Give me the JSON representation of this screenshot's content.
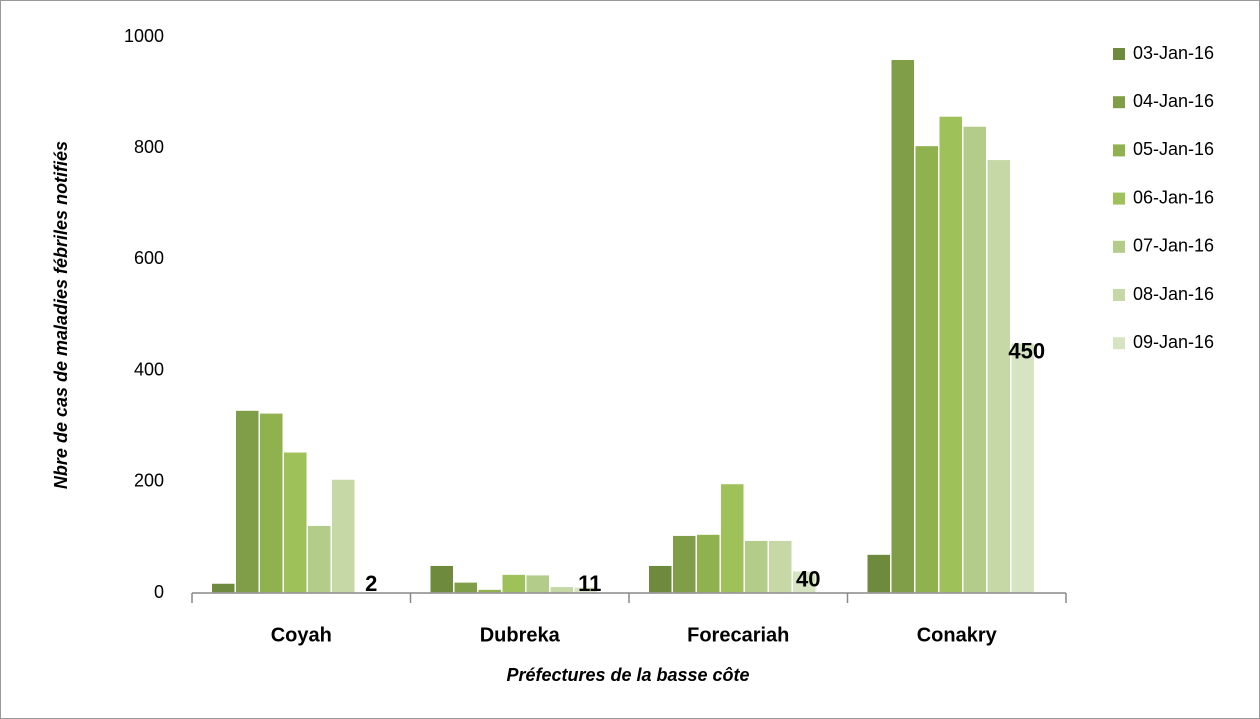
{
  "chart_data": {
    "type": "bar",
    "xlabel": "Préfectures de la basse côte",
    "ylabel": "Nbre de cas de maladies fébriles notifiés",
    "categories": [
      "Coyah",
      "Dubreka",
      "Forecariah",
      "Conakry"
    ],
    "series": [
      {
        "name": "03-Jan-16",
        "color": "#6e8b3d",
        "values": [
          18,
          50,
          50,
          70
        ]
      },
      {
        "name": "04-Jan-16",
        "color": "#7f9e47",
        "values": [
          329,
          20,
          104,
          960
        ]
      },
      {
        "name": "05-Jan-16",
        "color": "#8fb24e",
        "values": [
          324,
          7,
          106,
          805
        ]
      },
      {
        "name": "06-Jan-16",
        "color": "#9fc15a",
        "values": [
          254,
          34,
          197,
          858
        ]
      },
      {
        "name": "07-Jan-16",
        "color": "#b3cc8a",
        "values": [
          122,
          33,
          95,
          840
        ]
      },
      {
        "name": "08-Jan-16",
        "color": "#c5d8a6",
        "values": [
          205,
          12,
          95,
          780
        ]
      },
      {
        "name": "09-Jan-16",
        "color": "#d7e4c2",
        "values": [
          2,
          11,
          40,
          450
        ],
        "data_labels": true
      }
    ],
    "ylim": [
      0,
      1000
    ],
    "yticks": [
      0,
      200,
      400,
      600,
      800,
      1000
    ],
    "grid": false,
    "legend": "right"
  }
}
